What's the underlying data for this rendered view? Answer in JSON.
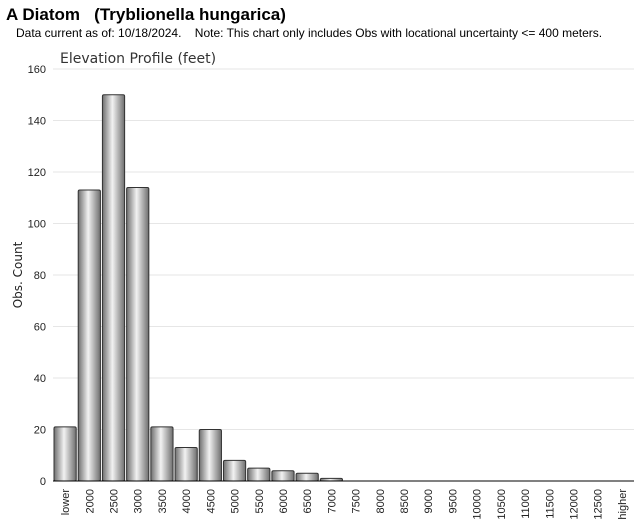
{
  "header": {
    "title": "A Diatom   (Tryblionella hungarica)",
    "subtitle": "Data current as of: 10/18/2024.    Note: This chart only includes Obs with locational uncertainty <= 400 meters."
  },
  "chart_data": {
    "type": "bar",
    "title": "Elevation Profile (feet)",
    "xlabel": "",
    "ylabel": "Obs. Count",
    "ylim": [
      0,
      160
    ],
    "yticks": [
      0,
      20,
      40,
      60,
      80,
      100,
      120,
      140,
      160
    ],
    "grid": true,
    "categories": [
      "lower",
      "2000",
      "2500",
      "3000",
      "3500",
      "4000",
      "4500",
      "5000",
      "5500",
      "6000",
      "6500",
      "7000",
      "7500",
      "8000",
      "8500",
      "9000",
      "9500",
      "10000",
      "10500",
      "11000",
      "11500",
      "12000",
      "12500",
      "higher"
    ],
    "values": [
      21,
      113,
      150,
      114,
      21,
      13,
      20,
      8,
      5,
      4,
      3,
      1,
      0,
      0,
      0,
      0,
      0,
      0,
      0,
      0,
      0,
      0,
      0,
      0
    ],
    "colors": {
      "bar_dark": "#6e6e6e",
      "bar_light": "#f2f2f2",
      "bar_stroke": "#333333",
      "grid": "#e6e6e6",
      "axis": "#000000"
    }
  }
}
